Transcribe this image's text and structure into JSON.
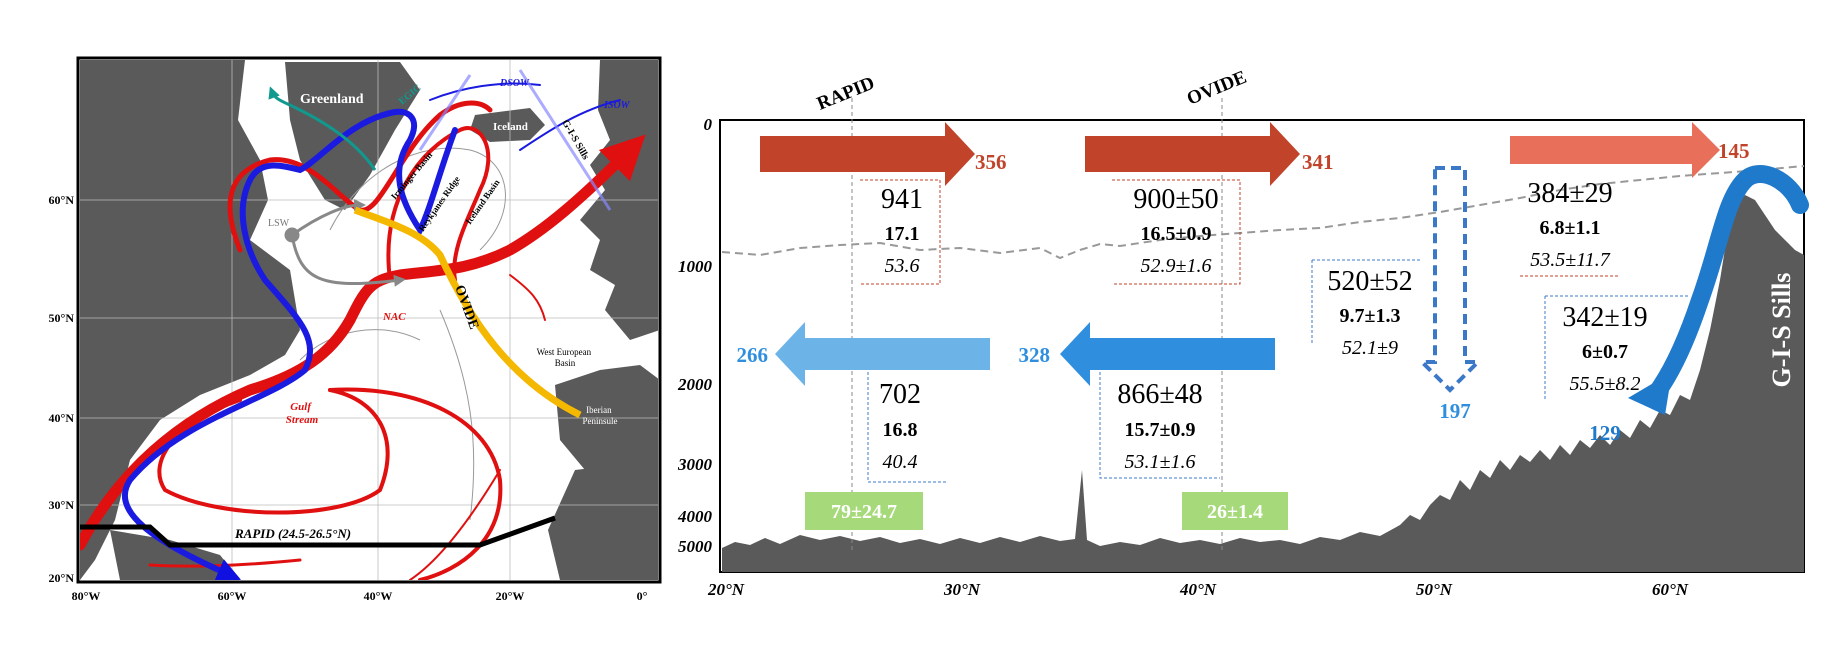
{
  "map": {
    "lon_ticks": [
      "80°W",
      "60°W",
      "40°W",
      "20°W",
      "0°"
    ],
    "lat_ticks": [
      "60°N",
      "50°N",
      "40°N",
      "30°N",
      "20°N"
    ],
    "place_labels": {
      "greenland": "Greenland",
      "iceland": "Iceland",
      "iberian": "Iberian\nPeninsule",
      "west_european": "West European\nBasin",
      "irminger": "Irminger Basin",
      "reykjanes": "Reykjanes Ridge",
      "iceland_basin": "Iceland Basin",
      "gis_sills": "G-I-S Sills"
    },
    "current_labels": {
      "egic": "EGIC",
      "dsow": "DSOW",
      "isow": "ISOW",
      "lsw": "LSW",
      "nac": "NAC",
      "gulf_stream": "Gulf\nStream"
    },
    "section_labels": {
      "ovide": "OVIDE",
      "rapid": "RAPID (24.5-26.5°N)"
    }
  },
  "section": {
    "x_ticks": [
      "20°N",
      "30°N",
      "40°N",
      "50°N",
      "60°N"
    ],
    "y_ticks": [
      "0",
      "1000",
      "2000",
      "3000",
      "4000",
      "5000"
    ],
    "label_rapid": "RAPID",
    "label_ovide": "OVIDE",
    "label_sills": "G-I-S Sills",
    "upper_arrows": [
      {
        "value": "356"
      },
      {
        "value": "341"
      },
      {
        "value": "145"
      }
    ],
    "lower_arrows": [
      {
        "value": "266"
      },
      {
        "value": "328"
      }
    ],
    "down_arrow_value": "197",
    "overflow_value": "129",
    "upper_boxes": [
      {
        "a": "941",
        "b": "17.1",
        "c": "53.6"
      },
      {
        "a": "900±50",
        "b": "16.5±0.9",
        "c": "52.9±1.6"
      },
      {
        "a": "384±29",
        "b": "6.8±1.1",
        "c": "53.5±11.7"
      }
    ],
    "lower_boxes": [
      {
        "a": "702",
        "b": "16.8",
        "c": "40.4"
      },
      {
        "a": "866±48",
        "b": "15.7±0.9",
        "c": "53.1±1.6"
      },
      {
        "a": "520±52",
        "b": "9.7±1.3",
        "c": "52.1±9"
      },
      {
        "a": "342±19",
        "b": "6±0.7",
        "c": "55.5±8.2"
      }
    ],
    "green_boxes": [
      "79±24.7",
      "26±1.4"
    ]
  },
  "colors": {
    "warm_dark": "#c0432a",
    "warm_light": "#e8705a",
    "cold_light": "#6cb4e8",
    "cold_mid": "#2f8fde",
    "cold_deep": "#1f7acc",
    "green": "#a6d97a",
    "topo": "#5a5a5a"
  }
}
